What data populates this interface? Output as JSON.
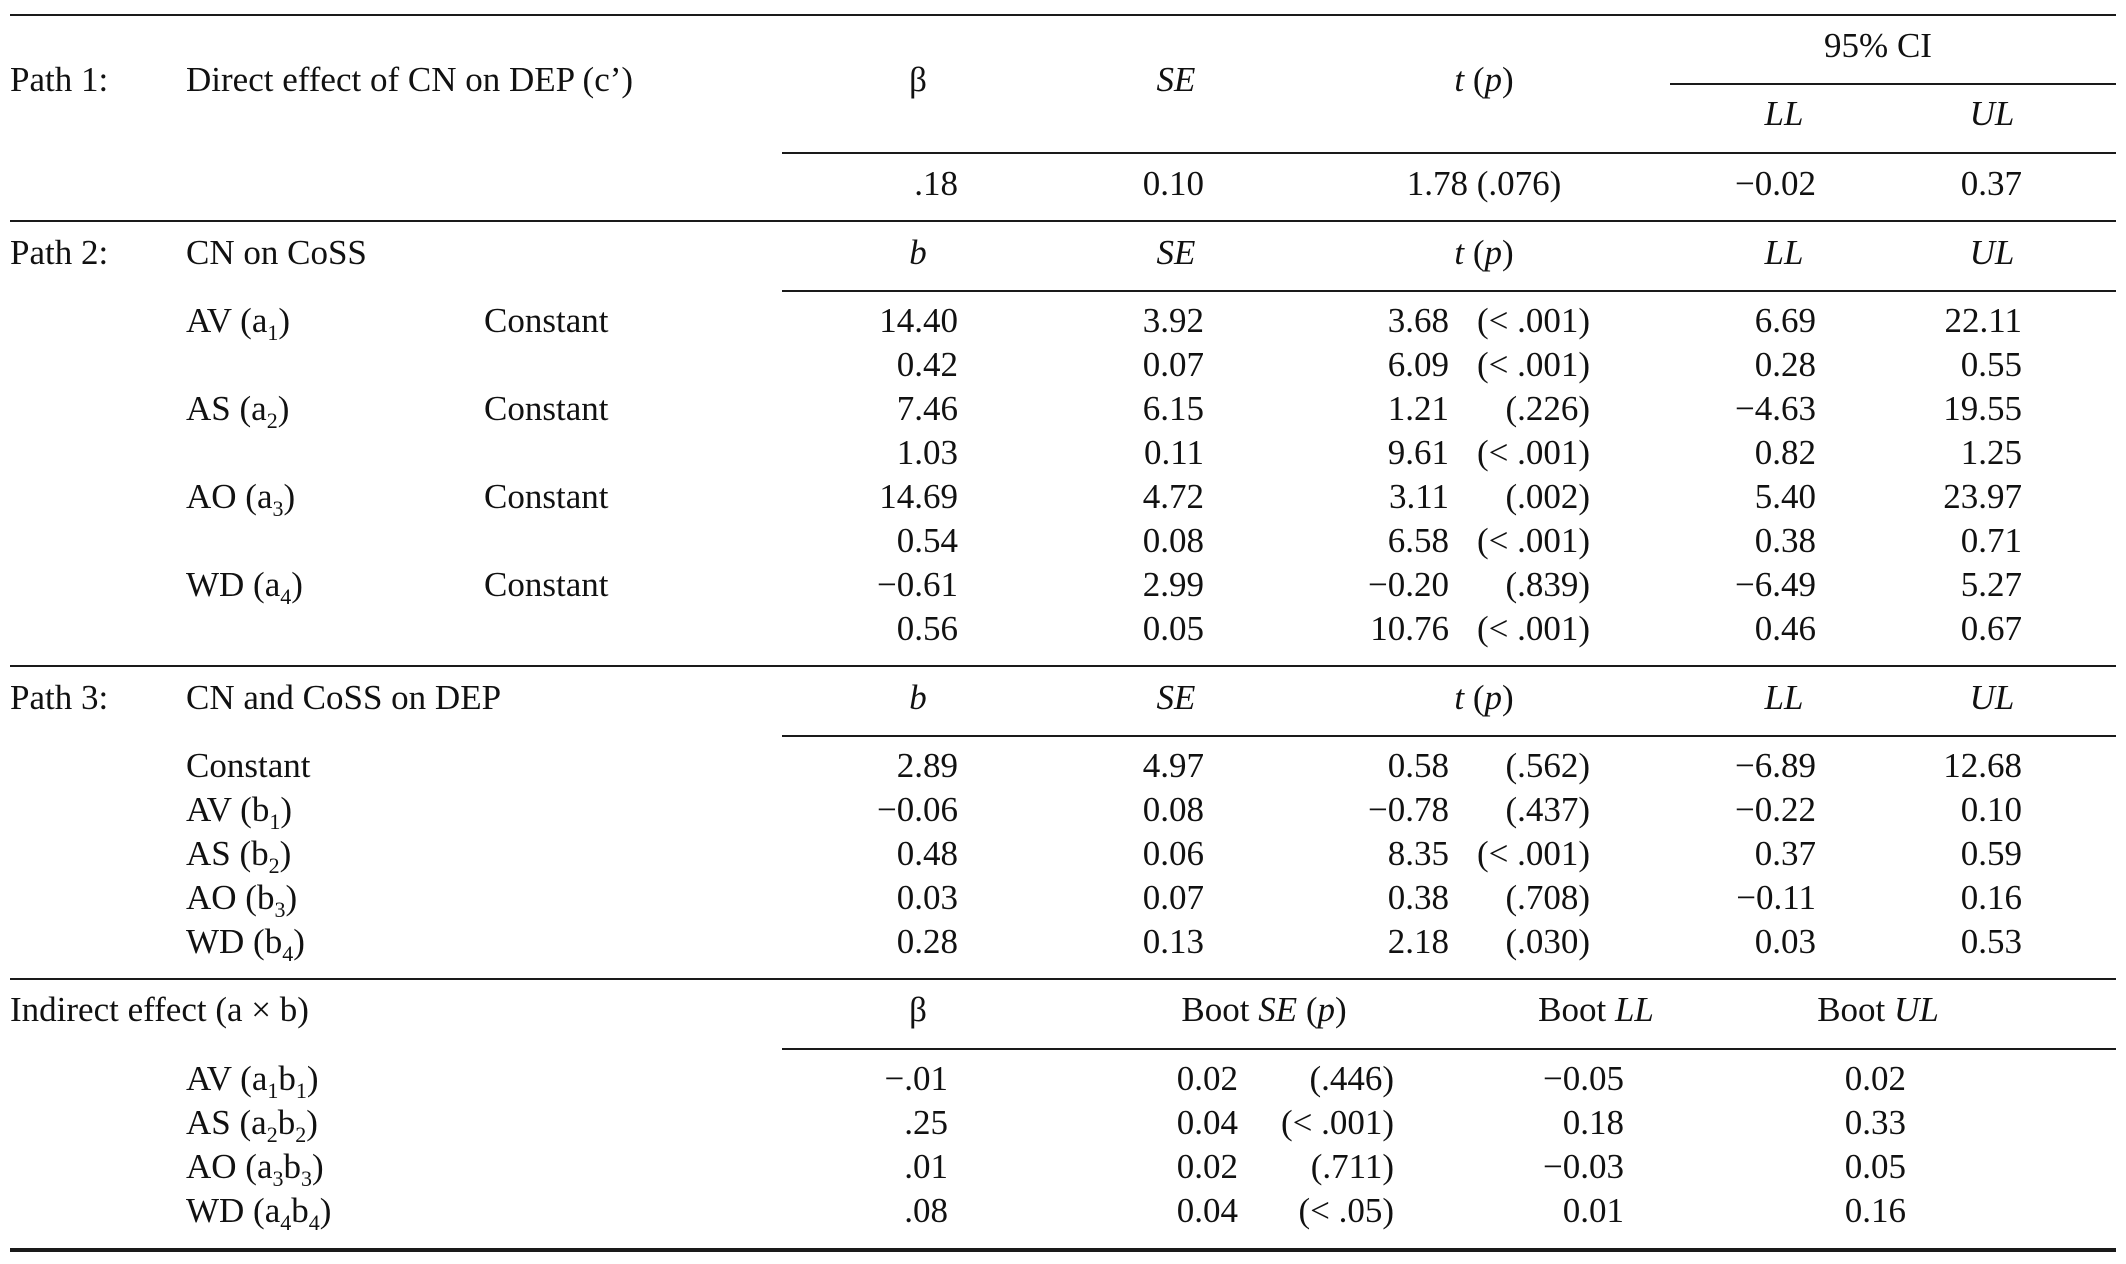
{
  "path1": {
    "label": "Path 1:",
    "desc": "Direct effect of CN on DEP (c’)",
    "headers": {
      "beta": "β",
      "se": "SE",
      "t": "t",
      "p": "p",
      "ci": "95% CI",
      "ll": "LL",
      "ul": "UL"
    },
    "row": {
      "beta": ".18",
      "se": "0.10",
      "tp": "1.78 (.076)",
      "ll": "−0.02",
      "ul": "0.37"
    }
  },
  "path2": {
    "label": "Path 2:",
    "desc": "CN on CoSS",
    "headers": {
      "b": "b",
      "se": "SE",
      "t": "t",
      "p": "p",
      "ll": "LL",
      "ul": "UL"
    },
    "rows": [
      {
        "name": "AV (a",
        "sub": "1",
        "tail": ")",
        "term": "Constant",
        "b": "14.40",
        "se": "3.92",
        "t": "3.68",
        "p": "(< .001)",
        "ll": "6.69",
        "ul": "22.11"
      },
      {
        "name": "",
        "sub": "",
        "tail": "",
        "term": "",
        "b": "0.42",
        "se": "0.07",
        "t": "6.09",
        "p": "(< .001)",
        "ll": "0.28",
        "ul": "0.55"
      },
      {
        "name": "AS (a",
        "sub": "2",
        "tail": ")",
        "term": "Constant",
        "b": "7.46",
        "se": "6.15",
        "t": "1.21",
        "p": "(.226)",
        "ll": "−4.63",
        "ul": "19.55"
      },
      {
        "name": "",
        "sub": "",
        "tail": "",
        "term": "",
        "b": "1.03",
        "se": "0.11",
        "t": "9.61",
        "p": "(< .001)",
        "ll": "0.82",
        "ul": "1.25"
      },
      {
        "name": "AO (a",
        "sub": "3",
        "tail": ")",
        "term": "Constant",
        "b": "14.69",
        "se": "4.72",
        "t": "3.11",
        "p": "(.002)",
        "ll": "5.40",
        "ul": "23.97"
      },
      {
        "name": "",
        "sub": "",
        "tail": "",
        "term": "",
        "b": "0.54",
        "se": "0.08",
        "t": "6.58",
        "p": "(< .001)",
        "ll": "0.38",
        "ul": "0.71"
      },
      {
        "name": "WD (a",
        "sub": "4",
        "tail": ")",
        "term": "Constant",
        "b": "−0.61",
        "se": "2.99",
        "t": "−0.20",
        "p": "(.839)",
        "ll": "−6.49",
        "ul": "5.27"
      },
      {
        "name": "",
        "sub": "",
        "tail": "",
        "term": "",
        "b": "0.56",
        "se": "0.05",
        "t": "10.76",
        "p": "(< .001)",
        "ll": "0.46",
        "ul": "0.67"
      }
    ]
  },
  "path3": {
    "label": "Path 3:",
    "desc": "CN and CoSS on DEP",
    "headers": {
      "b": "b",
      "se": "SE",
      "t": "t",
      "p": "p",
      "ll": "LL",
      "ul": "UL"
    },
    "rows": [
      {
        "name": "Constant",
        "sub": "",
        "tail": "",
        "b": "2.89",
        "se": "4.97",
        "t": "0.58",
        "p": "(.562)",
        "ll": "−6.89",
        "ul": "12.68"
      },
      {
        "name": "AV (b",
        "sub": "1",
        "tail": ")",
        "b": "−0.06",
        "se": "0.08",
        "t": "−0.78",
        "p": "(.437)",
        "ll": "−0.22",
        "ul": "0.10"
      },
      {
        "name": "AS (b",
        "sub": "2",
        "tail": ")",
        "b": "0.48",
        "se": "0.06",
        "t": "8.35",
        "p": "(< .001)",
        "ll": "0.37",
        "ul": "0.59"
      },
      {
        "name": "AO (b",
        "sub": "3",
        "tail": ")",
        "b": "0.03",
        "se": "0.07",
        "t": "0.38",
        "p": "(.708)",
        "ll": "−0.11",
        "ul": "0.16"
      },
      {
        "name": "WD (b",
        "sub": "4",
        "tail": ")",
        "b": "0.28",
        "se": "0.13",
        "t": "2.18",
        "p": "(.030)",
        "ll": "0.03",
        "ul": "0.53"
      }
    ]
  },
  "indirect": {
    "label": "Indirect effect (a × b)",
    "headers": {
      "beta": "β",
      "boot": "Boot",
      "se": "SE",
      "p": "p",
      "ll": "LL",
      "ul": "UL"
    },
    "rows": [
      {
        "n1": "AV (a",
        "s1": "1",
        "n2": "b",
        "s2": "1",
        "beta": "−.01",
        "se": "0.02",
        "p": "(.446)",
        "ll": "−0.05",
        "ul": "0.02"
      },
      {
        "n1": "AS (a",
        "s1": "2",
        "n2": "b",
        "s2": "2",
        "beta": ".25",
        "se": "0.04",
        "p": "(< .001)",
        "ll": "0.18",
        "ul": "0.33"
      },
      {
        "n1": "AO (a",
        "s1": "3",
        "n2": "b",
        "s2": "3",
        "beta": ".01",
        "se": "0.02",
        "p": "(.711)",
        "ll": "−0.03",
        "ul": "0.05"
      },
      {
        "n1": "WD (a",
        "s1": "4",
        "n2": "b",
        "s2": "4",
        "beta": ".08",
        "se": "0.04",
        "p": "(< .05)",
        "ll": "0.01",
        "ul": "0.16"
      }
    ]
  }
}
